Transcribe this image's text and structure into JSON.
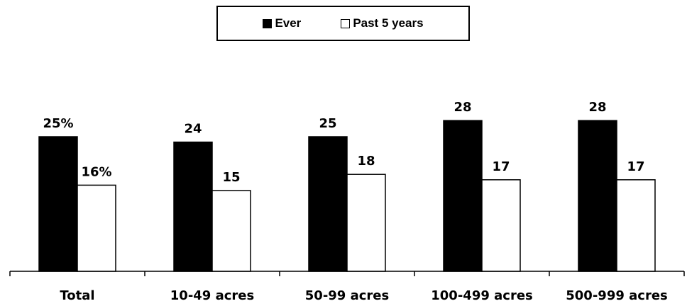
{
  "chart_data": {
    "type": "bar",
    "title": "",
    "xlabel": "",
    "ylabel": "",
    "ylim": [
      0,
      40
    ],
    "grid": false,
    "legend_position": "top-center",
    "categories": [
      "Total",
      "10-49 acres",
      "50-99 acres",
      "100-499 acres",
      "500-999 acres"
    ],
    "series": [
      {
        "name": "Ever",
        "color": "#000000",
        "values": [
          25,
          24,
          25,
          28,
          28
        ],
        "labels": [
          "25%",
          "24",
          "25",
          "28",
          "28"
        ]
      },
      {
        "name": "Past 5 years",
        "color": "#ffffff",
        "values": [
          16,
          15,
          18,
          17,
          17
        ],
        "labels": [
          "16%",
          "15",
          "18",
          "17",
          "17"
        ]
      }
    ]
  }
}
